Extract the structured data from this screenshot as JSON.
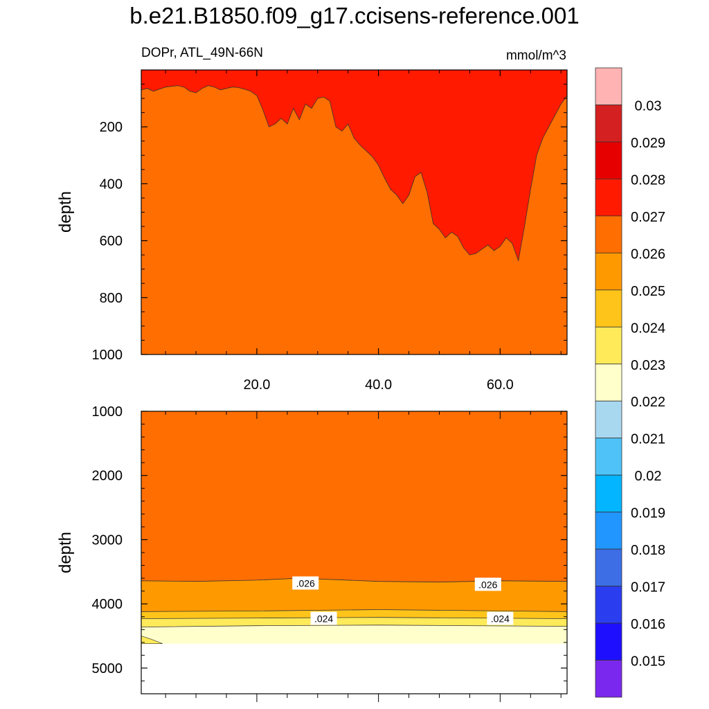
{
  "title": "b.e21.B1850.f09_g17.ccisens-reference.001",
  "chart_data": [
    {
      "type": "heatmap",
      "panel": "upper",
      "variable_label": "DOPr, ATL_49N-66N",
      "units": "mmol/m^3",
      "ylabel": "depth",
      "xlim": [
        1,
        71
      ],
      "ylim": [
        1000,
        0
      ],
      "x_ticks": [
        "20.0",
        "40.0",
        "60.0"
      ],
      "y_ticks": [
        "200",
        "400",
        "600",
        "800",
        "1000"
      ],
      "layers": [
        {
          "range": [
            0.026,
            0.027
          ],
          "color": "#ff6e00"
        },
        {
          "range": [
            0.027,
            0.028
          ],
          "color": "#ff1a00"
        }
      ],
      "boundary_0p027": {
        "x": [
          1,
          2,
          3,
          5,
          7,
          8,
          9,
          10,
          11,
          12,
          13,
          14,
          15,
          16,
          17,
          18,
          19,
          20,
          21,
          22,
          23,
          24,
          25,
          26,
          27,
          28,
          29,
          30,
          31,
          32,
          33,
          34,
          35,
          36,
          37,
          38,
          39,
          40,
          41,
          42,
          43,
          44,
          45,
          46,
          47,
          48,
          49,
          50,
          51,
          52,
          53,
          54,
          55,
          56,
          57,
          58,
          59,
          60,
          61,
          62,
          63,
          64,
          65,
          66,
          67,
          68,
          69,
          70,
          71
        ],
        "depth": [
          70,
          65,
          75,
          60,
          55,
          60,
          75,
          80,
          65,
          55,
          60,
          70,
          65,
          60,
          62,
          68,
          75,
          90,
          140,
          200,
          190,
          170,
          190,
          135,
          175,
          120,
          135,
          100,
          95,
          110,
          200,
          215,
          190,
          240,
          265,
          285,
          305,
          335,
          380,
          420,
          440,
          470,
          440,
          375,
          360,
          430,
          540,
          560,
          590,
          570,
          585,
          625,
          650,
          645,
          630,
          615,
          635,
          620,
          590,
          610,
          670,
          550,
          420,
          300,
          240,
          200,
          160,
          120,
          90
        ]
      }
    },
    {
      "type": "heatmap",
      "panel": "lower",
      "ylabel": "depth",
      "xlim": [
        1,
        71
      ],
      "ylim": [
        5400,
        1000
      ],
      "y_ticks": [
        "1000",
        "2000",
        "3000",
        "4000",
        "5000"
      ],
      "bottom_depth": 4620,
      "layers": [
        {
          "range": [
            0.026,
            0.027
          ],
          "color": "#ff6e00"
        },
        {
          "range": [
            0.025,
            0.026
          ],
          "color": "#ff9900"
        },
        {
          "range": [
            0.024,
            0.025
          ],
          "color": "#ffc41a"
        },
        {
          "range": [
            0.023,
            0.024
          ],
          "color": "#ffea5a"
        },
        {
          "range": [
            0.022,
            0.023
          ],
          "color": "#ffffcc"
        }
      ],
      "contour_0p026": {
        "x": [
          1,
          10,
          20,
          27,
          40,
          50,
          60,
          71
        ],
        "depth": [
          3640,
          3650,
          3630,
          3600,
          3650,
          3660,
          3640,
          3650
        ]
      },
      "contour_0p025": {
        "x": [
          1,
          20,
          40,
          71
        ],
        "depth": [
          4120,
          4110,
          4090,
          4120
        ]
      },
      "contour_0p024": {
        "x": [
          1,
          20,
          40,
          71
        ],
        "depth": [
          4230,
          4220,
          4210,
          4230
        ]
      },
      "contour_0p023": {
        "x": [
          1,
          20,
          40,
          71
        ],
        "depth": [
          4360,
          4340,
          4330,
          4350
        ]
      },
      "yellow_corner": {
        "x": [
          1,
          4.5
        ],
        "depth": [
          4500,
          4620
        ]
      },
      "contour_labels": [
        {
          "text": ".026",
          "x": 28,
          "depth": 3680
        },
        {
          "text": ".026",
          "x": 58,
          "depth": 3700
        },
        {
          "text": ".024",
          "x": 31,
          "depth": 4230
        },
        {
          "text": ".024",
          "x": 60,
          "depth": 4230
        }
      ]
    }
  ],
  "colorbar": {
    "labels": [
      "0.015",
      "0.016",
      "0.017",
      "0.018",
      "0.019",
      "0.02",
      "0.021",
      "0.022",
      "0.023",
      "0.024",
      "0.025",
      "0.026",
      "0.027",
      "0.028",
      "0.029",
      "0.03"
    ],
    "colors_top_to_bottom": [
      "#ffb3b3",
      "#d42020",
      "#e60000",
      "#ff1a00",
      "#ff6e00",
      "#ff9900",
      "#ffc41a",
      "#ffea5a",
      "#ffffcc",
      "#a8d8f0",
      "#4fc3f7",
      "#03b4ff",
      "#2196ff",
      "#3d6ee6",
      "#2a3ef0",
      "#1e10ff",
      "#7b28ee"
    ]
  }
}
